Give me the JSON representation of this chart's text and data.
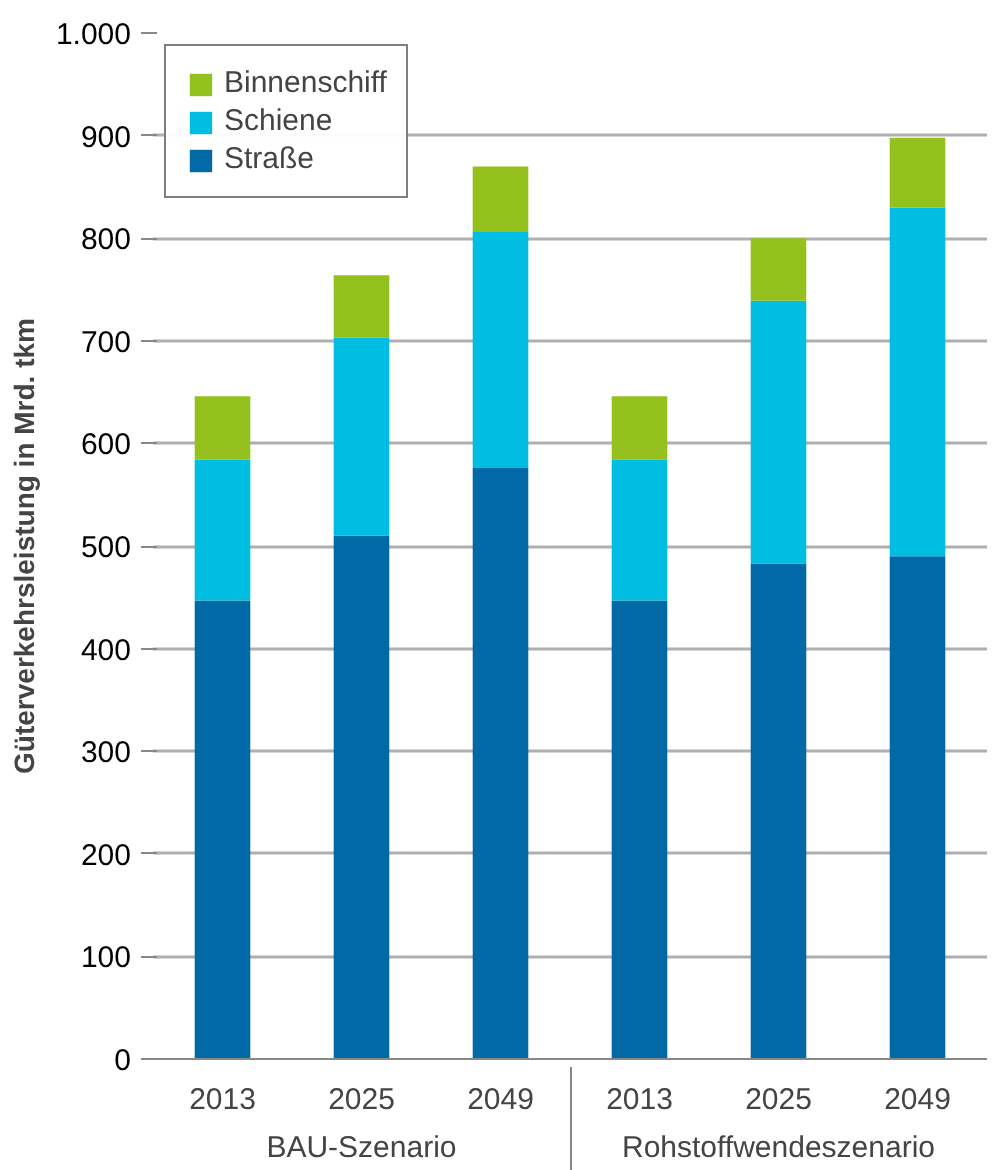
{
  "chart_data": {
    "type": "bar",
    "stacked": true,
    "ylabel": "Güterverkehrsleistung in Mrd. tkm",
    "categories": [
      "2013",
      "2025",
      "2049",
      "2013",
      "2025",
      "2049"
    ],
    "series": [
      {
        "name": "Straße",
        "color": "#0069a6",
        "values": [
          447,
          510,
          576,
          447,
          483,
          490
        ]
      },
      {
        "name": "Schiene",
        "color": "#00bde2",
        "values": [
          137,
          193,
          230,
          137,
          256,
          340
        ]
      },
      {
        "name": "Binnenschiff",
        "color": "#95c11f",
        "values": [
          62,
          61,
          64,
          62,
          61,
          68
        ]
      }
    ],
    "ylim": [
      0,
      1000
    ],
    "yticks": [
      0,
      100,
      200,
      300,
      400,
      500,
      600,
      700,
      800,
      900,
      {
        "value": 1000,
        "label": "1.000"
      }
    ],
    "annotations": [
      "BAU-Szenario",
      "Rohstoffwendeszenario"
    ],
    "grid": "y",
    "legend": "top left"
  }
}
